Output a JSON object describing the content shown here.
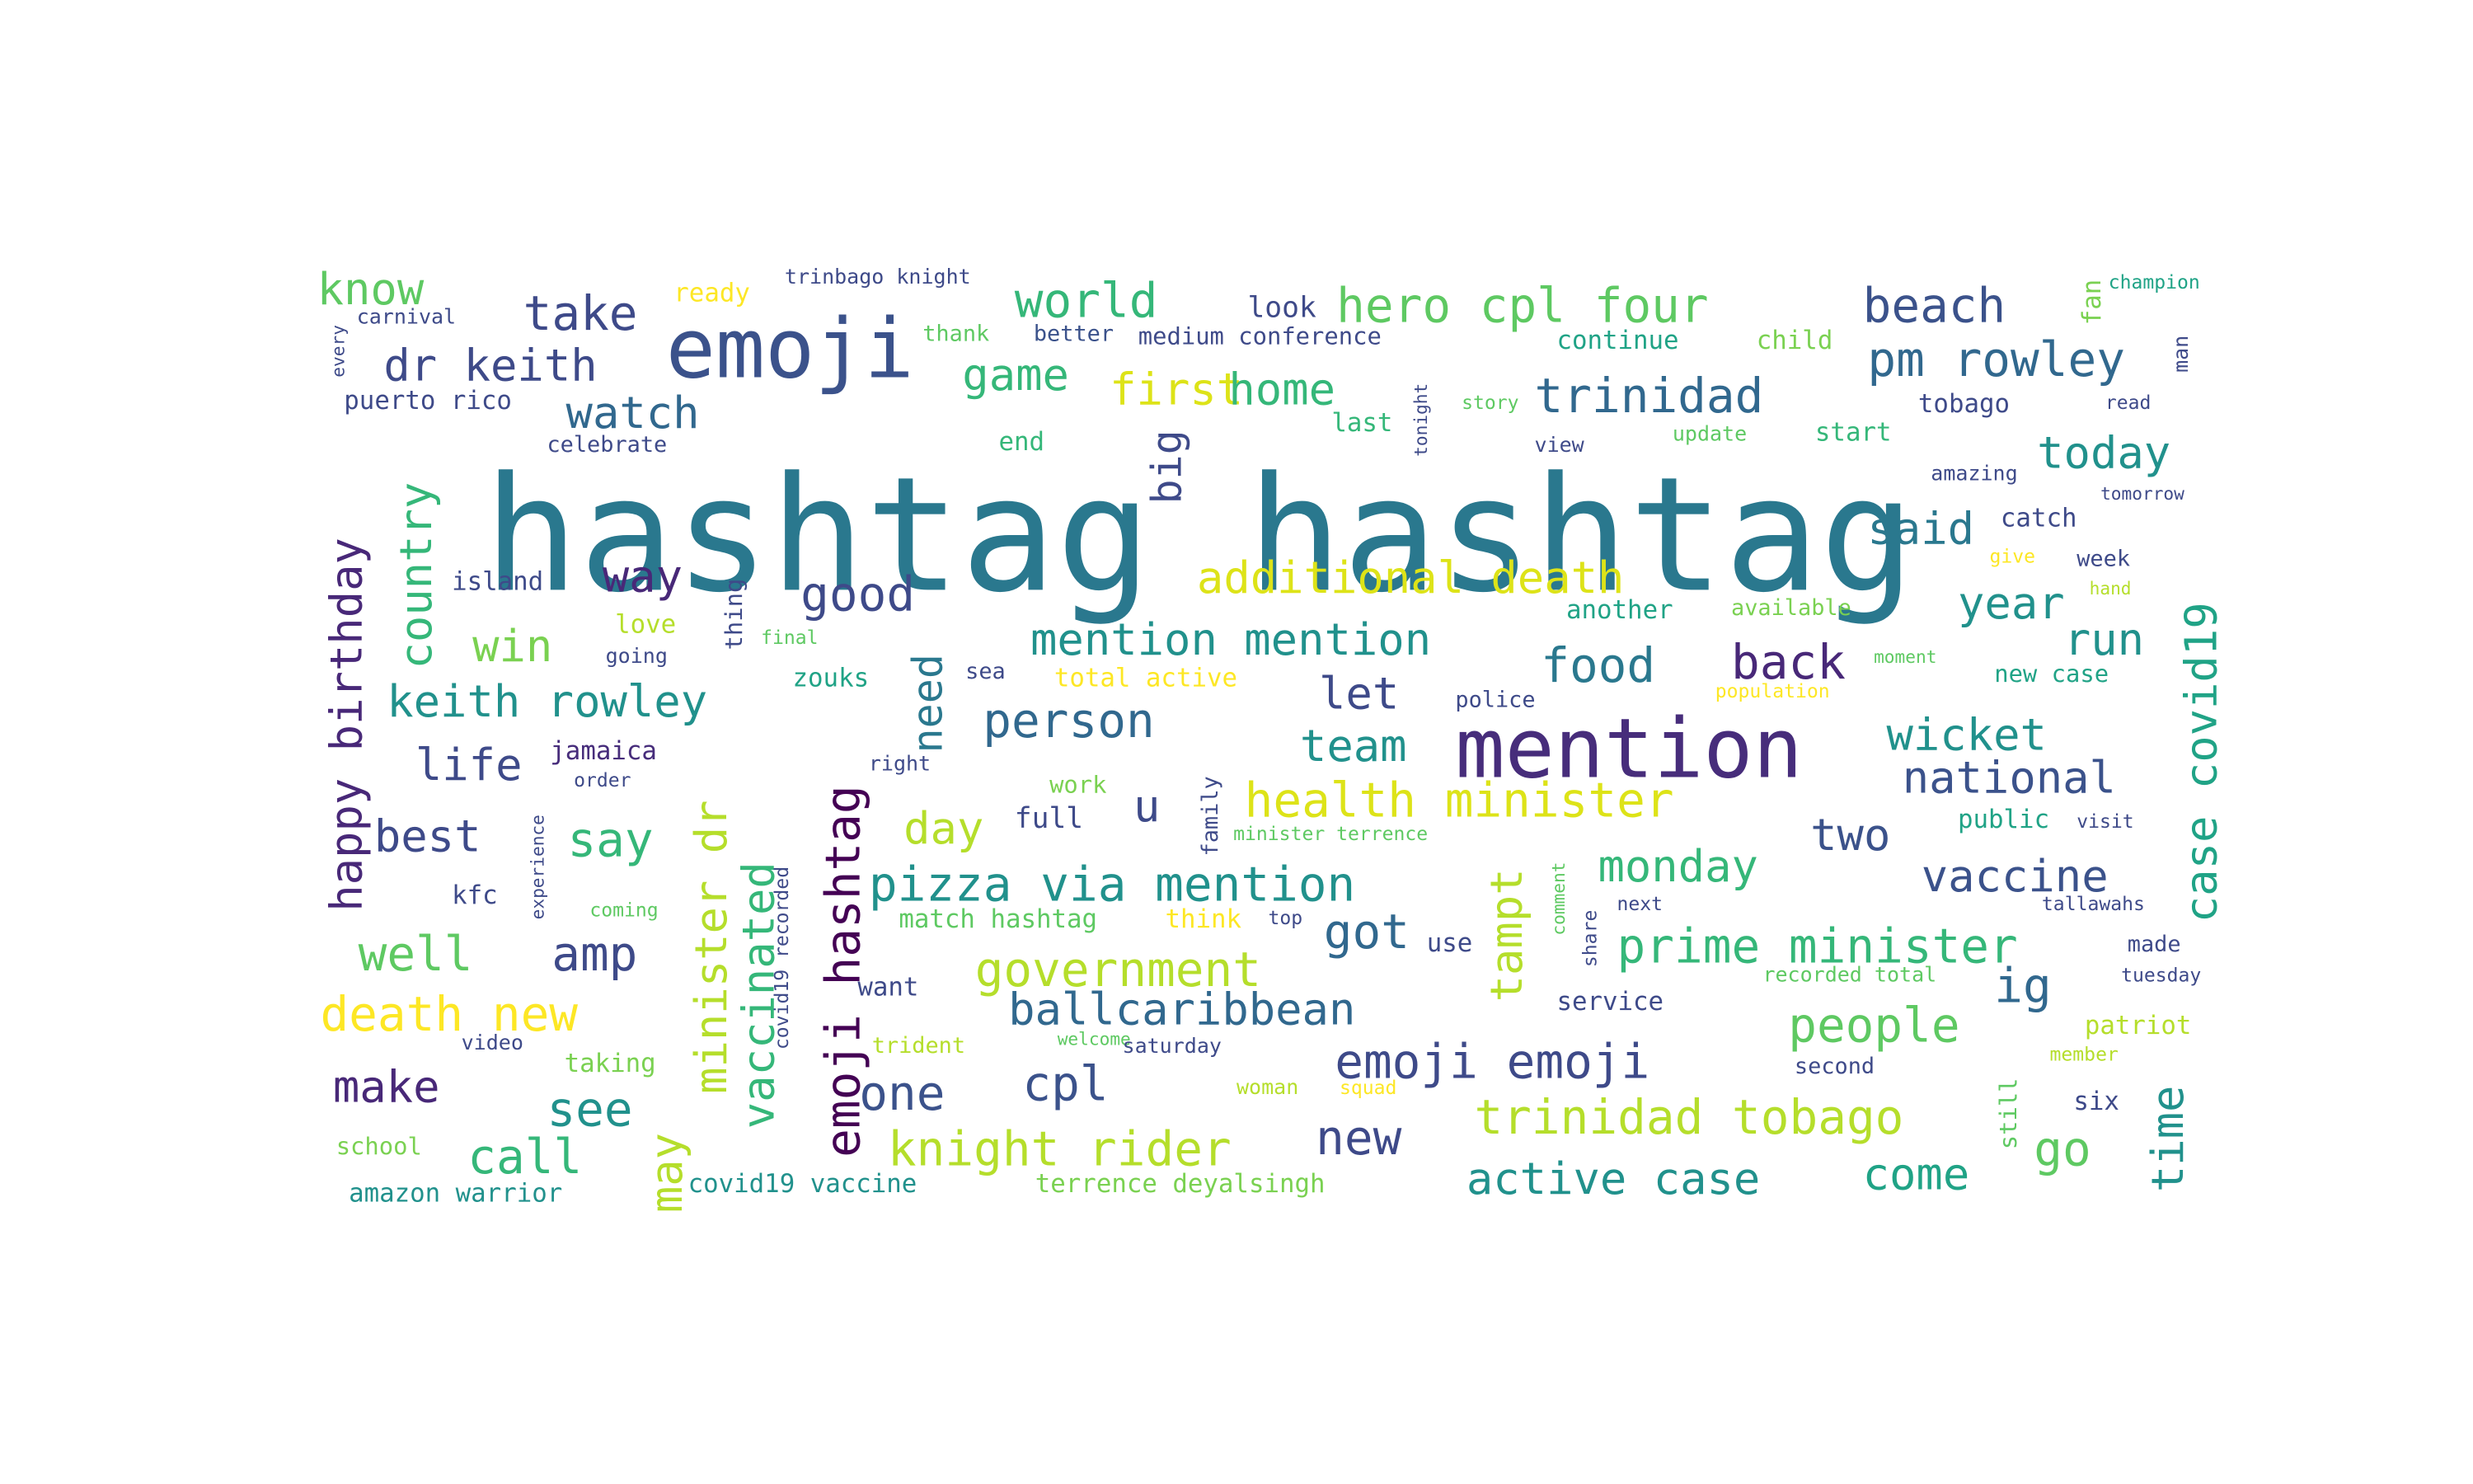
{
  "wordcloud": {
    "words": [
      {
        "text": "hashtag hashtag",
        "color": "#2a788e"
      },
      {
        "text": "mention",
        "color": "#472d7b"
      },
      {
        "text": "emoji",
        "color": "#3b528b"
      },
      {
        "text": "hero cpl four",
        "color": "#5ec962"
      },
      {
        "text": "beach",
        "color": "#3b528b"
      },
      {
        "text": "pm rowley",
        "color": "#31688e"
      },
      {
        "text": "trinidad",
        "color": "#31688e"
      },
      {
        "text": "dr keith",
        "color": "#3e4a89"
      },
      {
        "text": "take",
        "color": "#3e4a89"
      },
      {
        "text": "know",
        "color": "#5ec962"
      },
      {
        "text": "world",
        "color": "#35b779"
      },
      {
        "text": "game",
        "color": "#35b779"
      },
      {
        "text": "first",
        "color": "#dde318"
      },
      {
        "text": "home",
        "color": "#35b779"
      },
      {
        "text": "watch",
        "color": "#31688e"
      },
      {
        "text": "big",
        "color": "#3e4a89"
      },
      {
        "text": "today",
        "color": "#21918c"
      },
      {
        "text": "said",
        "color": "#2a788e"
      },
      {
        "text": "case covid19",
        "color": "#20a386"
      },
      {
        "text": "happy birthday",
        "color": "#482878"
      },
      {
        "text": "country",
        "color": "#35b779"
      },
      {
        "text": "way",
        "color": "#482878"
      },
      {
        "text": "good",
        "color": "#3e4a89"
      },
      {
        "text": "additional death",
        "color": "#dde318"
      },
      {
        "text": "year",
        "color": "#21918c"
      },
      {
        "text": "run",
        "color": "#21918c"
      },
      {
        "text": "mention mention",
        "color": "#21918c"
      },
      {
        "text": "food",
        "color": "#2a788e"
      },
      {
        "text": "back",
        "color": "#482878"
      },
      {
        "text": "win",
        "color": "#7ad151"
      },
      {
        "text": "keith rowley",
        "color": "#21918c"
      },
      {
        "text": "let",
        "color": "#3e4a89"
      },
      {
        "text": "need",
        "color": "#2a788e"
      },
      {
        "text": "person",
        "color": "#31688e"
      },
      {
        "text": "team",
        "color": "#21918c"
      },
      {
        "text": "wicket",
        "color": "#21918c"
      },
      {
        "text": "national",
        "color": "#3b528b"
      },
      {
        "text": "life",
        "color": "#3e4a89"
      },
      {
        "text": "emoji hashtag",
        "color": "#440154"
      },
      {
        "text": "health minister",
        "color": "#dde318"
      },
      {
        "text": "best",
        "color": "#3e4a89"
      },
      {
        "text": "say",
        "color": "#35b779"
      },
      {
        "text": "minister dr",
        "color": "#b5de2b"
      },
      {
        "text": "vaccinated",
        "color": "#35b779"
      },
      {
        "text": "day",
        "color": "#b5de2b"
      },
      {
        "text": "u",
        "color": "#3e4a89"
      },
      {
        "text": "two",
        "color": "#3b528b"
      },
      {
        "text": "pizza via mention",
        "color": "#21918c"
      },
      {
        "text": "monday",
        "color": "#35b779"
      },
      {
        "text": "vaccine",
        "color": "#3b528b"
      },
      {
        "text": "tampt",
        "color": "#b5de2b"
      },
      {
        "text": "well",
        "color": "#5ec962"
      },
      {
        "text": "amp",
        "color": "#3e4a89"
      },
      {
        "text": "government",
        "color": "#b5de2b"
      },
      {
        "text": "got",
        "color": "#31688e"
      },
      {
        "text": "prime minister",
        "color": "#35b779"
      },
      {
        "text": "ig",
        "color": "#31688e"
      },
      {
        "text": "death new",
        "color": "#fde725"
      },
      {
        "text": "ballcaribbean",
        "color": "#31688e"
      },
      {
        "text": "people",
        "color": "#5ec962"
      },
      {
        "text": "make",
        "color": "#482878"
      },
      {
        "text": "one",
        "color": "#3b528b"
      },
      {
        "text": "cpl",
        "color": "#3b528b"
      },
      {
        "text": "emoji emoji",
        "color": "#3e4a89"
      },
      {
        "text": "time",
        "color": "#21918c"
      },
      {
        "text": "see",
        "color": "#21918c"
      },
      {
        "text": "may",
        "color": "#b5de2b"
      },
      {
        "text": "trinidad tobago",
        "color": "#b5de2b"
      },
      {
        "text": "call",
        "color": "#35b779"
      },
      {
        "text": "knight rider",
        "color": "#b5de2b"
      },
      {
        "text": "new",
        "color": "#3e4a89"
      },
      {
        "text": "go",
        "color": "#5ec962"
      },
      {
        "text": "active case",
        "color": "#21918c"
      },
      {
        "text": "come",
        "color": "#20a386"
      },
      {
        "text": "ready",
        "color": "#fde725"
      },
      {
        "text": "trinbago knight",
        "color": "#3e4a89"
      },
      {
        "text": "look",
        "color": "#3e4a89"
      },
      {
        "text": "carnival",
        "color": "#3e4a89"
      },
      {
        "text": "every",
        "color": "#3e4a89"
      },
      {
        "text": "thank",
        "color": "#5ec962"
      },
      {
        "text": "better",
        "color": "#3b528b"
      },
      {
        "text": "medium conference",
        "color": "#3e4a89"
      },
      {
        "text": "continue",
        "color": "#20a386"
      },
      {
        "text": "child",
        "color": "#7ad151"
      },
      {
        "text": "fan",
        "color": "#7ad151"
      },
      {
        "text": "champion",
        "color": "#20a386"
      },
      {
        "text": "man",
        "color": "#3e4a89"
      },
      {
        "text": "puerto rico",
        "color": "#3e4a89"
      },
      {
        "text": "celebrate",
        "color": "#3e4a89"
      },
      {
        "text": "tonight",
        "color": "#3e4a89"
      },
      {
        "text": "story",
        "color": "#5ec962"
      },
      {
        "text": "last",
        "color": "#35b779"
      },
      {
        "text": "tobago",
        "color": "#3e4a89"
      },
      {
        "text": "read",
        "color": "#3e4a89"
      },
      {
        "text": "end",
        "color": "#35b779"
      },
      {
        "text": "start",
        "color": "#35b779"
      },
      {
        "text": "update",
        "color": "#5ec962"
      },
      {
        "text": "view",
        "color": "#3e4a89"
      },
      {
        "text": "amazing",
        "color": "#3e4a89"
      },
      {
        "text": "catch",
        "color": "#3e4a89"
      },
      {
        "text": "tomorrow",
        "color": "#3e4a89"
      },
      {
        "text": "island",
        "color": "#3e4a89"
      },
      {
        "text": "love",
        "color": "#b5de2b"
      },
      {
        "text": "going",
        "color": "#3e4a89"
      },
      {
        "text": "thing",
        "color": "#3e4a89"
      },
      {
        "text": "final",
        "color": "#5ec962"
      },
      {
        "text": "give",
        "color": "#fde725"
      },
      {
        "text": "week",
        "color": "#3e4a89"
      },
      {
        "text": "hand",
        "color": "#b5de2b"
      },
      {
        "text": "another",
        "color": "#20a386"
      },
      {
        "text": "available",
        "color": "#7ad151"
      },
      {
        "text": "moment",
        "color": "#5ec962"
      },
      {
        "text": "population",
        "color": "#fde725"
      },
      {
        "text": "new case",
        "color": "#20a386"
      },
      {
        "text": "zouks",
        "color": "#20a386"
      },
      {
        "text": "sea",
        "color": "#3e4a89"
      },
      {
        "text": "total active",
        "color": "#fde725"
      },
      {
        "text": "police",
        "color": "#3e4a89"
      },
      {
        "text": "jamaica",
        "color": "#472d7b"
      },
      {
        "text": "order",
        "color": "#3e4a89"
      },
      {
        "text": "right",
        "color": "#3e4a89"
      },
      {
        "text": "work",
        "color": "#7ad151"
      },
      {
        "text": "family",
        "color": "#3e4a89"
      },
      {
        "text": "full",
        "color": "#3e4a89"
      },
      {
        "text": "public",
        "color": "#20a386"
      },
      {
        "text": "visit",
        "color": "#3e4a89"
      },
      {
        "text": "minister terrence",
        "color": "#5ec962"
      },
      {
        "text": "kfc",
        "color": "#3e4a89"
      },
      {
        "text": "experience",
        "color": "#3e4a89"
      },
      {
        "text": "coming",
        "color": "#5ec962"
      },
      {
        "text": "match hashtag",
        "color": "#5ec962"
      },
      {
        "text": "think",
        "color": "#fde725"
      },
      {
        "text": "top",
        "color": "#3e4a89"
      },
      {
        "text": "use",
        "color": "#3e4a89"
      },
      {
        "text": "next",
        "color": "#3e4a89"
      },
      {
        "text": "tallawahs",
        "color": "#3e4a89"
      },
      {
        "text": "made",
        "color": "#3e4a89"
      },
      {
        "text": "tuesday",
        "color": "#3e4a89"
      },
      {
        "text": "want",
        "color": "#3e4a89"
      },
      {
        "text": "covid19 recorded",
        "color": "#3e4a89"
      },
      {
        "text": "service",
        "color": "#3e4a89"
      },
      {
        "text": "recorded total",
        "color": "#5ec962"
      },
      {
        "text": "share",
        "color": "#3e4a89"
      },
      {
        "text": "comment",
        "color": "#5ec962"
      },
      {
        "text": "patriot",
        "color": "#b5de2b"
      },
      {
        "text": "video",
        "color": "#3e4a89"
      },
      {
        "text": "taking",
        "color": "#7ad151"
      },
      {
        "text": "trident",
        "color": "#b5de2b"
      },
      {
        "text": "welcome",
        "color": "#5ec962"
      },
      {
        "text": "saturday",
        "color": "#3e4a89"
      },
      {
        "text": "second",
        "color": "#3e4a89"
      },
      {
        "text": "member",
        "color": "#b5de2b"
      },
      {
        "text": "woman",
        "color": "#b5de2b"
      },
      {
        "text": "squad",
        "color": "#fde725"
      },
      {
        "text": "six",
        "color": "#3e4a89"
      },
      {
        "text": "still",
        "color": "#5ec962"
      },
      {
        "text": "school",
        "color": "#7ad151"
      },
      {
        "text": "amazon warrior",
        "color": "#21918c"
      },
      {
        "text": "covid19 vaccine",
        "color": "#21918c"
      },
      {
        "text": "terrence deyalsingh",
        "color": "#7ad151"
      }
    ]
  }
}
